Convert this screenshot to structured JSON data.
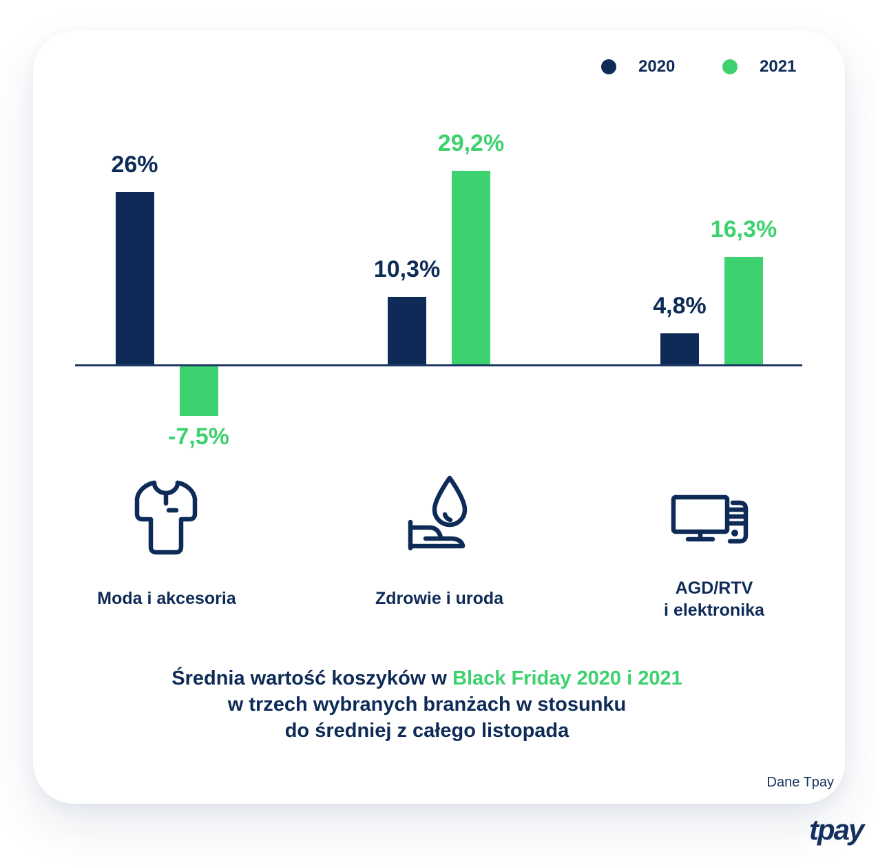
{
  "colors": {
    "navy": "#0e2b57",
    "green": "#3ed16f",
    "axis": "#1e3a63"
  },
  "legend": [
    {
      "label": "2020",
      "color": "#0e2b57"
    },
    {
      "label": "2021",
      "color": "#3ed16f"
    }
  ],
  "chart_data": {
    "type": "bar",
    "categories": [
      "Moda i akcesoria",
      "Zdrowie i uroda",
      "AGD/RTV i elektronika"
    ],
    "series": [
      {
        "name": "2020",
        "color": "#0e2b57",
        "values": [
          26,
          10.3,
          4.8
        ],
        "labels": [
          "26%",
          "10,3%",
          "4,8%"
        ]
      },
      {
        "name": "2021",
        "color": "#3ed16f",
        "values": [
          -7.5,
          29.2,
          16.3
        ],
        "labels": [
          "-7,5%",
          "29,2%",
          "16,3%"
        ]
      }
    ],
    "unit": "%",
    "baseline": 0,
    "ylim": [
      -10,
      32
    ],
    "grid": false,
    "legend_position": "top-right",
    "title": "Średnia wartość koszyków w Black Friday 2020 i 2021 w trzech wybranych branżach w stosunku do średniej z całego listopada"
  },
  "category_labels": [
    {
      "lines": [
        "Moda i akcesoria"
      ],
      "icon": "tshirt-icon"
    },
    {
      "lines": [
        "Zdrowie i uroda"
      ],
      "icon": "waterdrop-hand-icon"
    },
    {
      "lines": [
        "AGD/RTV",
        "i elektronika"
      ],
      "icon": "computer-icon"
    }
  ],
  "title": {
    "line1_prefix": "Średnia wartość koszyków w ",
    "line1_highlight": "Black Friday 2020 i 2021",
    "line2": "w trzech wybranych branżach w stosunku",
    "line3": "do średniej z całego listopada"
  },
  "footer": {
    "source": "Dane Tpay",
    "logo": "tpay"
  }
}
